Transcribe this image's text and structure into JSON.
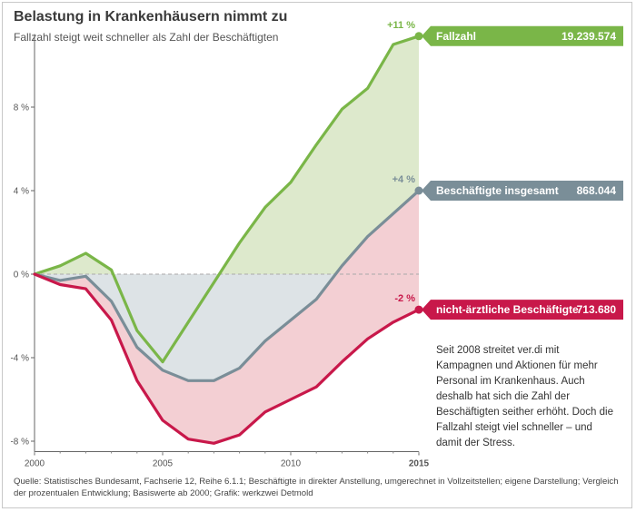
{
  "chart_data": {
    "type": "line",
    "title": "Belastung in Krankenhäusern nimmt zu",
    "subtitle": "Fallzahl steigt weit schneller als Zahl der Beschäftigten",
    "x": [
      2000,
      2001,
      2002,
      2003,
      2004,
      2005,
      2006,
      2007,
      2008,
      2009,
      2010,
      2011,
      2012,
      2013,
      2014,
      2015
    ],
    "x_ticks": [
      "2000",
      "2005",
      "2010",
      "2015"
    ],
    "y_ticks": [
      "8 %",
      "4 %",
      "0 %",
      "-4 %",
      "-8 %"
    ],
    "ylim": [
      -8.5,
      11.5
    ],
    "series": [
      {
        "key": "fallzahl",
        "name": "Fallzahl",
        "value_label": "19.239.574",
        "end_label": "+11 %",
        "color": "#7ab648",
        "values": [
          0,
          0.4,
          1.0,
          0.2,
          -2.7,
          -4.2,
          -2.3,
          -0.4,
          1.5,
          3.2,
          4.4,
          6.2,
          7.9,
          8.9,
          11.0,
          11.4
        ]
      },
      {
        "key": "beschaeftigte",
        "name": "Beschäftigte insgesamt",
        "value_label": "868.044",
        "end_label": "+4 %",
        "color": "#7a8e98",
        "values": [
          0,
          -0.3,
          -0.1,
          -1.3,
          -3.5,
          -4.6,
          -5.1,
          -5.1,
          -4.5,
          -3.2,
          -2.2,
          -1.2,
          0.4,
          1.8,
          2.9,
          4.0
        ]
      },
      {
        "key": "nichtaerztlich",
        "name": "nicht-ärztliche Beschäftigte",
        "value_label": "713.680",
        "end_label": "-2 %",
        "color": "#c8184a",
        "values": [
          0,
          -0.5,
          -0.7,
          -2.2,
          -5.1,
          -7.0,
          -7.9,
          -8.1,
          -7.7,
          -6.6,
          -6.0,
          -5.4,
          -4.2,
          -3.1,
          -2.3,
          -1.7
        ]
      }
    ],
    "fills": {
      "green": "#dde9cc",
      "grey": "#dde3e6",
      "red": "#f3cfd3"
    }
  },
  "note": "Seit 2008 streitet ver.di mit Kampagnen und Aktionen für mehr Personal im Krankenhaus. Auch deshalb hat sich die Zahl der Beschäftigten seither erhöht. Doch die Fallzahl steigt viel schneller – und damit der Stress.",
  "source": "Quelle: Statistisches Bundesamt, Fachserie 12, Reihe 6.1.1; Beschäftigte in direkter Anstellung, umgerechnet in Vollzeitstellen; eigene Darstellung; Vergleich der prozentualen Entwicklung; Basiswerte ab 2000; Grafik: werkzwei Detmold"
}
